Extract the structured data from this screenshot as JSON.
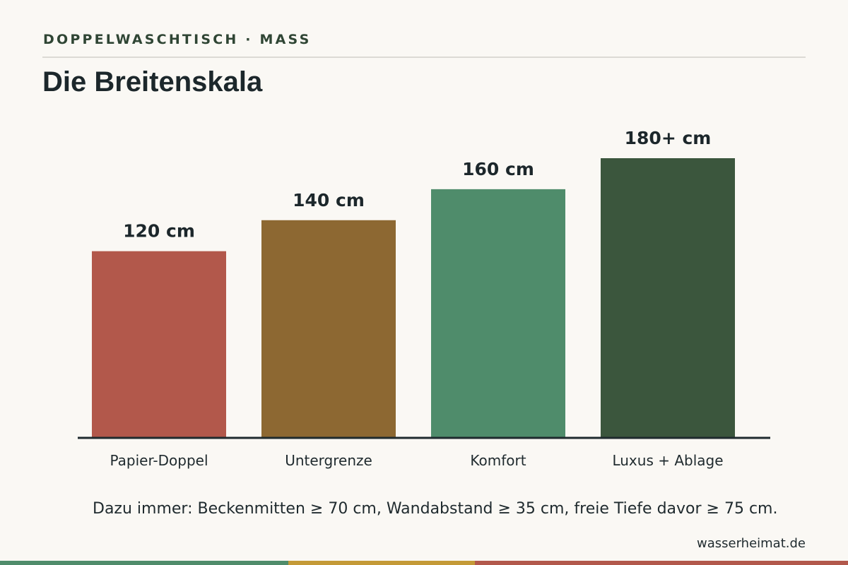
{
  "header": {
    "eyebrow": "DOPPELWASCHTISCH · MASS",
    "title": "Die Breitenskala"
  },
  "chart_data": {
    "type": "bar",
    "categories": [
      "Papier-Doppel",
      "Untergrenze",
      "Komfort",
      "Luxus + Ablage"
    ],
    "values": [
      120,
      140,
      160,
      180
    ],
    "data_labels": [
      "120 cm",
      "140 cm",
      "160 cm",
      "180+ cm"
    ],
    "colors": [
      "#b2584b",
      "#8d6832",
      "#4f8c6b",
      "#3b563d"
    ],
    "ylim": [
      0,
      180
    ],
    "grid": false,
    "legend": "none",
    "title": "",
    "xlabel": "",
    "ylabel": ""
  },
  "footer": {
    "note": "Dazu immer: Beckenmitten ≥ 70 cm, Wandabstand ≥ 35 cm, freie Tiefe davor ≥ 75 cm.",
    "credit": "wasserheimat.de"
  },
  "stripe_colors": [
    "#4f8c6b",
    "#c49a37",
    "#b2584b"
  ]
}
